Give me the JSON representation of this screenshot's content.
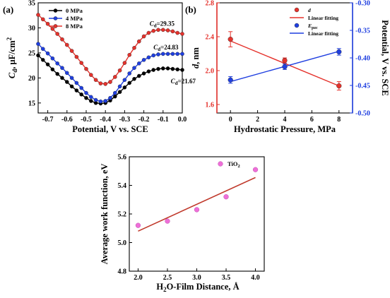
{
  "panels": {
    "a_label": "(a)",
    "b_label": "(b)"
  },
  "chart_data": [
    {
      "id": "a",
      "type": "line",
      "ylabel_main": "C",
      "ylabel_sub": "d",
      "ylabel_rest": ", μF/cm",
      "ylabel_sup": "2",
      "xlabel": "Potential, V vs. SCE",
      "xlim": [
        -0.75,
        0.0
      ],
      "ylim": [
        13,
        35
      ],
      "xticks": [
        "-0.7",
        "-0.6",
        "-0.5",
        "-0.4",
        "-0.3",
        "-0.2",
        "-0.1",
        "0.0"
      ],
      "xtick_values": [
        -0.7,
        -0.6,
        -0.5,
        -0.4,
        -0.3,
        -0.2,
        -0.1,
        0.0
      ],
      "yticks": [
        "15",
        "20",
        "25",
        "30",
        "35"
      ],
      "ytick_values": [
        15,
        20,
        25,
        30,
        35
      ],
      "x": [
        -0.75,
        -0.725,
        -0.7,
        -0.675,
        -0.65,
        -0.625,
        -0.6,
        -0.575,
        -0.55,
        -0.525,
        -0.5,
        -0.475,
        -0.45,
        -0.425,
        -0.4,
        -0.375,
        -0.35,
        -0.325,
        -0.3,
        -0.275,
        -0.25,
        -0.225,
        -0.2,
        -0.175,
        -0.15,
        -0.125,
        -0.1,
        -0.075,
        -0.05,
        -0.025,
        0.0
      ],
      "series": [
        {
          "name": "0 MPa",
          "color": "#000000",
          "values": [
            24.5,
            23.6,
            22.7,
            21.7,
            20.8,
            20.0,
            19.2,
            18.3,
            17.5,
            16.7,
            16.0,
            15.4,
            15.0,
            14.9,
            15.0,
            15.5,
            16.3,
            17.2,
            18.1,
            19.0,
            19.8,
            20.4,
            20.9,
            21.3,
            21.6,
            21.8,
            21.9,
            21.9,
            21.8,
            21.7,
            21.6
          ]
        },
        {
          "name": "4 MPa",
          "color": "#1f3fe0",
          "values": [
            26.8,
            25.8,
            24.9,
            23.9,
            22.9,
            22.0,
            21.0,
            20.0,
            19.0,
            18.0,
            17.0,
            16.2,
            15.6,
            15.3,
            15.4,
            16.0,
            17.0,
            18.3,
            19.6,
            20.9,
            22.0,
            22.9,
            23.6,
            24.1,
            24.5,
            24.7,
            24.8,
            24.8,
            24.8,
            24.8,
            24.8
          ]
        },
        {
          "name": "8 MPa",
          "color": "#e5322c",
          "values": [
            32.6,
            31.7,
            30.8,
            29.8,
            28.8,
            27.7,
            26.6,
            25.4,
            24.2,
            23.0,
            21.8,
            20.6,
            19.6,
            18.9,
            18.8,
            19.2,
            20.2,
            21.5,
            23.0,
            24.6,
            26.0,
            27.3,
            28.3,
            29.0,
            29.4,
            29.6,
            29.6,
            29.5,
            29.3,
            29.0,
            28.8
          ]
        }
      ],
      "annotations": [
        {
          "main": "C",
          "sub": "d",
          "rest": "=29.35",
          "x": -0.17,
          "y": 30.4
        },
        {
          "main": "C",
          "sub": "d",
          "rest": "=24.83",
          "x": -0.15,
          "y": 25.7
        },
        {
          "main": "C",
          "sub": "d",
          "rest": "=21.67",
          "x": -0.06,
          "y": 18.9
        }
      ],
      "legend_position": "top-left"
    },
    {
      "id": "b",
      "type": "scatter",
      "xlabel": "Hydrostatic Pressure, MPa",
      "xlim": [
        -1,
        9
      ],
      "xticks": [
        "0",
        "2",
        "4",
        "6",
        "8"
      ],
      "xtick_values": [
        0,
        2,
        4,
        6,
        8
      ],
      "left_axis": {
        "label_main": "d",
        "label_rest": ", nm",
        "color": "#e5322c",
        "lim": [
          1.5,
          2.8
        ],
        "ticks": [
          "1.6",
          "2.0",
          "2.4",
          "2.8"
        ],
        "tick_values": [
          1.6,
          2.0,
          2.4,
          2.8
        ]
      },
      "right_axis": {
        "label": "Potential, V vs. SCE",
        "color": "#1f3fe0",
        "lim": [
          -0.5,
          -0.3
        ],
        "ticks": [
          "-0.50",
          "-0.45",
          "-0.40",
          "-0.35",
          "-0.30"
        ],
        "tick_values": [
          -0.5,
          -0.45,
          -0.4,
          -0.35,
          -0.3
        ]
      },
      "series": [
        {
          "name": "d",
          "axis": "left",
          "color": "#e5322c",
          "x": [
            0,
            4,
            8
          ],
          "values": [
            2.37,
            2.12,
            1.82
          ],
          "errors": [
            0.09,
            0.03,
            0.05
          ],
          "fit": [
            2.35,
            1.82
          ]
        },
        {
          "name_main": "E",
          "name_sub": "pzc",
          "axis": "right",
          "color": "#1f3fe0",
          "x": [
            0,
            4,
            8
          ],
          "values": [
            -0.44,
            -0.416,
            -0.389
          ],
          "errors": [
            0.006,
            0.005,
            0.006
          ],
          "fit": [
            -0.443,
            -0.388
          ]
        }
      ],
      "legend": [
        {
          "main": "d",
          "italic": true
        },
        {
          "main": "Linear fitting"
        },
        {
          "main": "E",
          "sub": "pzc",
          "italic": true
        },
        {
          "main": "Linear fitting"
        }
      ],
      "legend_position": "top-right"
    },
    {
      "id": "c",
      "type": "scatter",
      "ylabel": "Average work function, eV",
      "xlabel_main": "H",
      "xlabel_sub": "2",
      "xlabel_rest": "O-Film Distance,  Å",
      "xlim": [
        1.85,
        4.15
      ],
      "ylim": [
        4.8,
        5.6
      ],
      "xticks": [
        "2.0",
        "2.5",
        "3.0",
        "3.5",
        "4.0"
      ],
      "xtick_values": [
        2.0,
        2.5,
        3.0,
        3.5,
        4.0
      ],
      "yticks": [
        "4.8",
        "5.0",
        "5.2",
        "5.4",
        "5.6"
      ],
      "ytick_values": [
        4.8,
        5.0,
        5.2,
        5.4,
        5.6
      ],
      "series": [
        {
          "name_main": "TiO",
          "name_sub": "2",
          "color": "#ee6fd8",
          "x": [
            2.0,
            2.5,
            3.0,
            3.5,
            4.0
          ],
          "values": [
            5.12,
            5.15,
            5.23,
            5.32,
            5.51
          ]
        }
      ],
      "fit": {
        "x": [
          2.0,
          4.0
        ],
        "y": [
          5.08,
          5.455
        ],
        "color": "#c0392b"
      },
      "legend_position": "top-right"
    }
  ]
}
